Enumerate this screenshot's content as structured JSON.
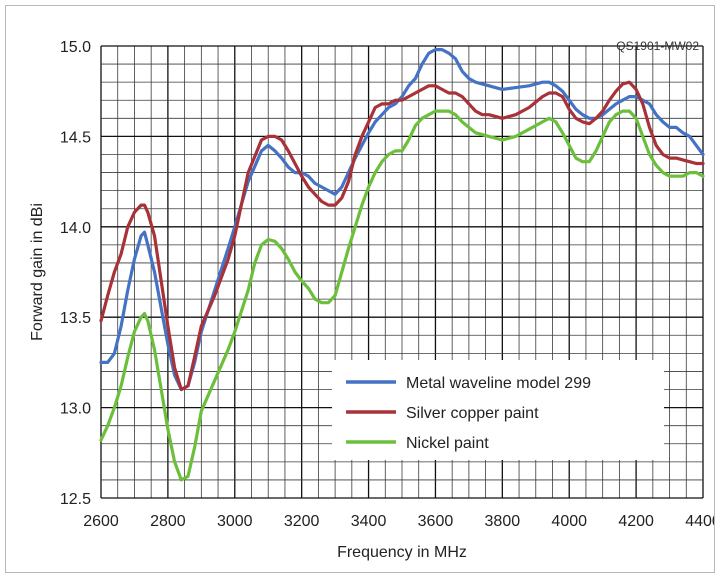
{
  "chart_data": {
    "type": "line",
    "title": "",
    "code_label": "QS1901-MW02",
    "xlabel": "Frequency in MHz",
    "ylabel": "Forward gain in dBi",
    "xlim": [
      2600,
      4400
    ],
    "ylim": [
      12.5,
      15.0
    ],
    "x_ticks": [
      "2600",
      "2800",
      "3000",
      "3200",
      "3400",
      "3600",
      "3800",
      "4000",
      "4200",
      "4400"
    ],
    "y_ticks": [
      "12.5",
      "13.0",
      "13.5",
      "14.0",
      "14.5",
      "15.0"
    ],
    "grid": true,
    "legend_position": "lower-right",
    "series": [
      {
        "name": "Metal waveline model 299",
        "color": "#4472c4",
        "points": [
          [
            2600,
            13.25
          ],
          [
            2620,
            13.25
          ],
          [
            2640,
            13.3
          ],
          [
            2660,
            13.45
          ],
          [
            2680,
            13.65
          ],
          [
            2700,
            13.82
          ],
          [
            2720,
            13.95
          ],
          [
            2730,
            13.97
          ],
          [
            2740,
            13.9
          ],
          [
            2760,
            13.75
          ],
          [
            2780,
            13.55
          ],
          [
            2800,
            13.35
          ],
          [
            2820,
            13.18
          ],
          [
            2840,
            13.1
          ],
          [
            2860,
            13.12
          ],
          [
            2880,
            13.25
          ],
          [
            2900,
            13.42
          ],
          [
            2940,
            13.65
          ],
          [
            2980,
            13.88
          ],
          [
            3000,
            14.0
          ],
          [
            3040,
            14.25
          ],
          [
            3080,
            14.42
          ],
          [
            3100,
            14.45
          ],
          [
            3120,
            14.42
          ],
          [
            3140,
            14.38
          ],
          [
            3160,
            14.33
          ],
          [
            3180,
            14.3
          ],
          [
            3200,
            14.3
          ],
          [
            3220,
            14.28
          ],
          [
            3240,
            14.24
          ],
          [
            3260,
            14.22
          ],
          [
            3280,
            14.2
          ],
          [
            3300,
            14.18
          ],
          [
            3320,
            14.22
          ],
          [
            3340,
            14.3
          ],
          [
            3360,
            14.38
          ],
          [
            3380,
            14.45
          ],
          [
            3400,
            14.52
          ],
          [
            3420,
            14.58
          ],
          [
            3440,
            14.62
          ],
          [
            3460,
            14.66
          ],
          [
            3480,
            14.68
          ],
          [
            3500,
            14.72
          ],
          [
            3520,
            14.78
          ],
          [
            3540,
            14.82
          ],
          [
            3560,
            14.9
          ],
          [
            3580,
            14.96
          ],
          [
            3600,
            14.98
          ],
          [
            3620,
            14.98
          ],
          [
            3640,
            14.96
          ],
          [
            3660,
            14.93
          ],
          [
            3680,
            14.86
          ],
          [
            3700,
            14.82
          ],
          [
            3720,
            14.8
          ],
          [
            3760,
            14.78
          ],
          [
            3800,
            14.76
          ],
          [
            3840,
            14.77
          ],
          [
            3880,
            14.78
          ],
          [
            3920,
            14.8
          ],
          [
            3940,
            14.8
          ],
          [
            3960,
            14.78
          ],
          [
            3980,
            14.75
          ],
          [
            4000,
            14.7
          ],
          [
            4020,
            14.65
          ],
          [
            4040,
            14.62
          ],
          [
            4060,
            14.6
          ],
          [
            4080,
            14.6
          ],
          [
            4100,
            14.62
          ],
          [
            4120,
            14.65
          ],
          [
            4140,
            14.68
          ],
          [
            4160,
            14.7
          ],
          [
            4180,
            14.72
          ],
          [
            4200,
            14.72
          ],
          [
            4220,
            14.7
          ],
          [
            4240,
            14.68
          ],
          [
            4260,
            14.62
          ],
          [
            4280,
            14.58
          ],
          [
            4300,
            14.55
          ],
          [
            4320,
            14.55
          ],
          [
            4340,
            14.52
          ],
          [
            4360,
            14.5
          ],
          [
            4380,
            14.45
          ],
          [
            4400,
            14.4
          ]
        ]
      },
      {
        "name": "Silver copper paint",
        "color": "#a83238",
        "points": [
          [
            2600,
            13.48
          ],
          [
            2620,
            13.62
          ],
          [
            2640,
            13.75
          ],
          [
            2660,
            13.85
          ],
          [
            2680,
            14.0
          ],
          [
            2700,
            14.08
          ],
          [
            2720,
            14.12
          ],
          [
            2730,
            14.12
          ],
          [
            2740,
            14.08
          ],
          [
            2760,
            13.95
          ],
          [
            2780,
            13.7
          ],
          [
            2800,
            13.45
          ],
          [
            2820,
            13.22
          ],
          [
            2840,
            13.1
          ],
          [
            2860,
            13.12
          ],
          [
            2880,
            13.28
          ],
          [
            2900,
            13.45
          ],
          [
            2940,
            13.62
          ],
          [
            2980,
            13.82
          ],
          [
            3000,
            13.95
          ],
          [
            3040,
            14.3
          ],
          [
            3080,
            14.48
          ],
          [
            3100,
            14.5
          ],
          [
            3120,
            14.5
          ],
          [
            3140,
            14.48
          ],
          [
            3160,
            14.42
          ],
          [
            3180,
            14.35
          ],
          [
            3200,
            14.28
          ],
          [
            3220,
            14.22
          ],
          [
            3240,
            14.18
          ],
          [
            3260,
            14.14
          ],
          [
            3280,
            14.12
          ],
          [
            3300,
            14.12
          ],
          [
            3320,
            14.16
          ],
          [
            3340,
            14.25
          ],
          [
            3360,
            14.4
          ],
          [
            3380,
            14.5
          ],
          [
            3400,
            14.58
          ],
          [
            3420,
            14.66
          ],
          [
            3440,
            14.68
          ],
          [
            3460,
            14.68
          ],
          [
            3480,
            14.7
          ],
          [
            3500,
            14.7
          ],
          [
            3520,
            14.72
          ],
          [
            3540,
            14.74
          ],
          [
            3560,
            14.76
          ],
          [
            3580,
            14.78
          ],
          [
            3600,
            14.78
          ],
          [
            3620,
            14.76
          ],
          [
            3640,
            14.74
          ],
          [
            3660,
            14.74
          ],
          [
            3680,
            14.72
          ],
          [
            3700,
            14.68
          ],
          [
            3720,
            14.64
          ],
          [
            3740,
            14.62
          ],
          [
            3760,
            14.62
          ],
          [
            3800,
            14.6
          ],
          [
            3840,
            14.62
          ],
          [
            3880,
            14.66
          ],
          [
            3920,
            14.72
          ],
          [
            3940,
            14.74
          ],
          [
            3960,
            14.74
          ],
          [
            3980,
            14.72
          ],
          [
            4000,
            14.65
          ],
          [
            4020,
            14.6
          ],
          [
            4040,
            14.58
          ],
          [
            4060,
            14.57
          ],
          [
            4080,
            14.6
          ],
          [
            4100,
            14.64
          ],
          [
            4120,
            14.7
          ],
          [
            4140,
            14.75
          ],
          [
            4160,
            14.79
          ],
          [
            4180,
            14.8
          ],
          [
            4200,
            14.76
          ],
          [
            4220,
            14.68
          ],
          [
            4240,
            14.55
          ],
          [
            4260,
            14.45
          ],
          [
            4280,
            14.4
          ],
          [
            4300,
            14.38
          ],
          [
            4320,
            14.38
          ],
          [
            4340,
            14.37
          ],
          [
            4360,
            14.36
          ],
          [
            4380,
            14.35
          ],
          [
            4400,
            14.35
          ]
        ]
      },
      {
        "name": "Nickel paint",
        "color": "#6bbf3b",
        "points": [
          [
            2600,
            12.82
          ],
          [
            2620,
            12.9
          ],
          [
            2640,
            13.0
          ],
          [
            2660,
            13.12
          ],
          [
            2680,
            13.28
          ],
          [
            2700,
            13.42
          ],
          [
            2720,
            13.5
          ],
          [
            2730,
            13.52
          ],
          [
            2740,
            13.48
          ],
          [
            2760,
            13.32
          ],
          [
            2780,
            13.1
          ],
          [
            2800,
            12.88
          ],
          [
            2820,
            12.7
          ],
          [
            2840,
            12.6
          ],
          [
            2860,
            12.62
          ],
          [
            2880,
            12.78
          ],
          [
            2900,
            12.98
          ],
          [
            2940,
            13.15
          ],
          [
            2980,
            13.32
          ],
          [
            3000,
            13.42
          ],
          [
            3040,
            13.65
          ],
          [
            3060,
            13.8
          ],
          [
            3080,
            13.9
          ],
          [
            3100,
            13.93
          ],
          [
            3120,
            13.92
          ],
          [
            3140,
            13.88
          ],
          [
            3160,
            13.82
          ],
          [
            3180,
            13.75
          ],
          [
            3200,
            13.7
          ],
          [
            3220,
            13.66
          ],
          [
            3240,
            13.6
          ],
          [
            3260,
            13.58
          ],
          [
            3280,
            13.58
          ],
          [
            3300,
            13.62
          ],
          [
            3320,
            13.75
          ],
          [
            3340,
            13.88
          ],
          [
            3360,
            14.0
          ],
          [
            3380,
            14.12
          ],
          [
            3400,
            14.22
          ],
          [
            3420,
            14.3
          ],
          [
            3440,
            14.36
          ],
          [
            3460,
            14.4
          ],
          [
            3480,
            14.42
          ],
          [
            3500,
            14.42
          ],
          [
            3520,
            14.48
          ],
          [
            3540,
            14.56
          ],
          [
            3560,
            14.6
          ],
          [
            3580,
            14.62
          ],
          [
            3600,
            14.64
          ],
          [
            3620,
            14.64
          ],
          [
            3640,
            14.64
          ],
          [
            3660,
            14.62
          ],
          [
            3680,
            14.58
          ],
          [
            3700,
            14.55
          ],
          [
            3720,
            14.52
          ],
          [
            3760,
            14.5
          ],
          [
            3800,
            14.48
          ],
          [
            3840,
            14.5
          ],
          [
            3880,
            14.54
          ],
          [
            3920,
            14.58
          ],
          [
            3940,
            14.6
          ],
          [
            3960,
            14.58
          ],
          [
            3980,
            14.52
          ],
          [
            4000,
            14.45
          ],
          [
            4020,
            14.38
          ],
          [
            4040,
            14.36
          ],
          [
            4060,
            14.36
          ],
          [
            4080,
            14.42
          ],
          [
            4100,
            14.5
          ],
          [
            4120,
            14.58
          ],
          [
            4140,
            14.62
          ],
          [
            4160,
            14.64
          ],
          [
            4180,
            14.64
          ],
          [
            4200,
            14.6
          ],
          [
            4220,
            14.5
          ],
          [
            4240,
            14.4
          ],
          [
            4260,
            14.34
          ],
          [
            4280,
            14.3
          ],
          [
            4300,
            14.28
          ],
          [
            4320,
            14.28
          ],
          [
            4340,
            14.28
          ],
          [
            4360,
            14.3
          ],
          [
            4380,
            14.3
          ],
          [
            4400,
            14.28
          ]
        ]
      }
    ]
  }
}
